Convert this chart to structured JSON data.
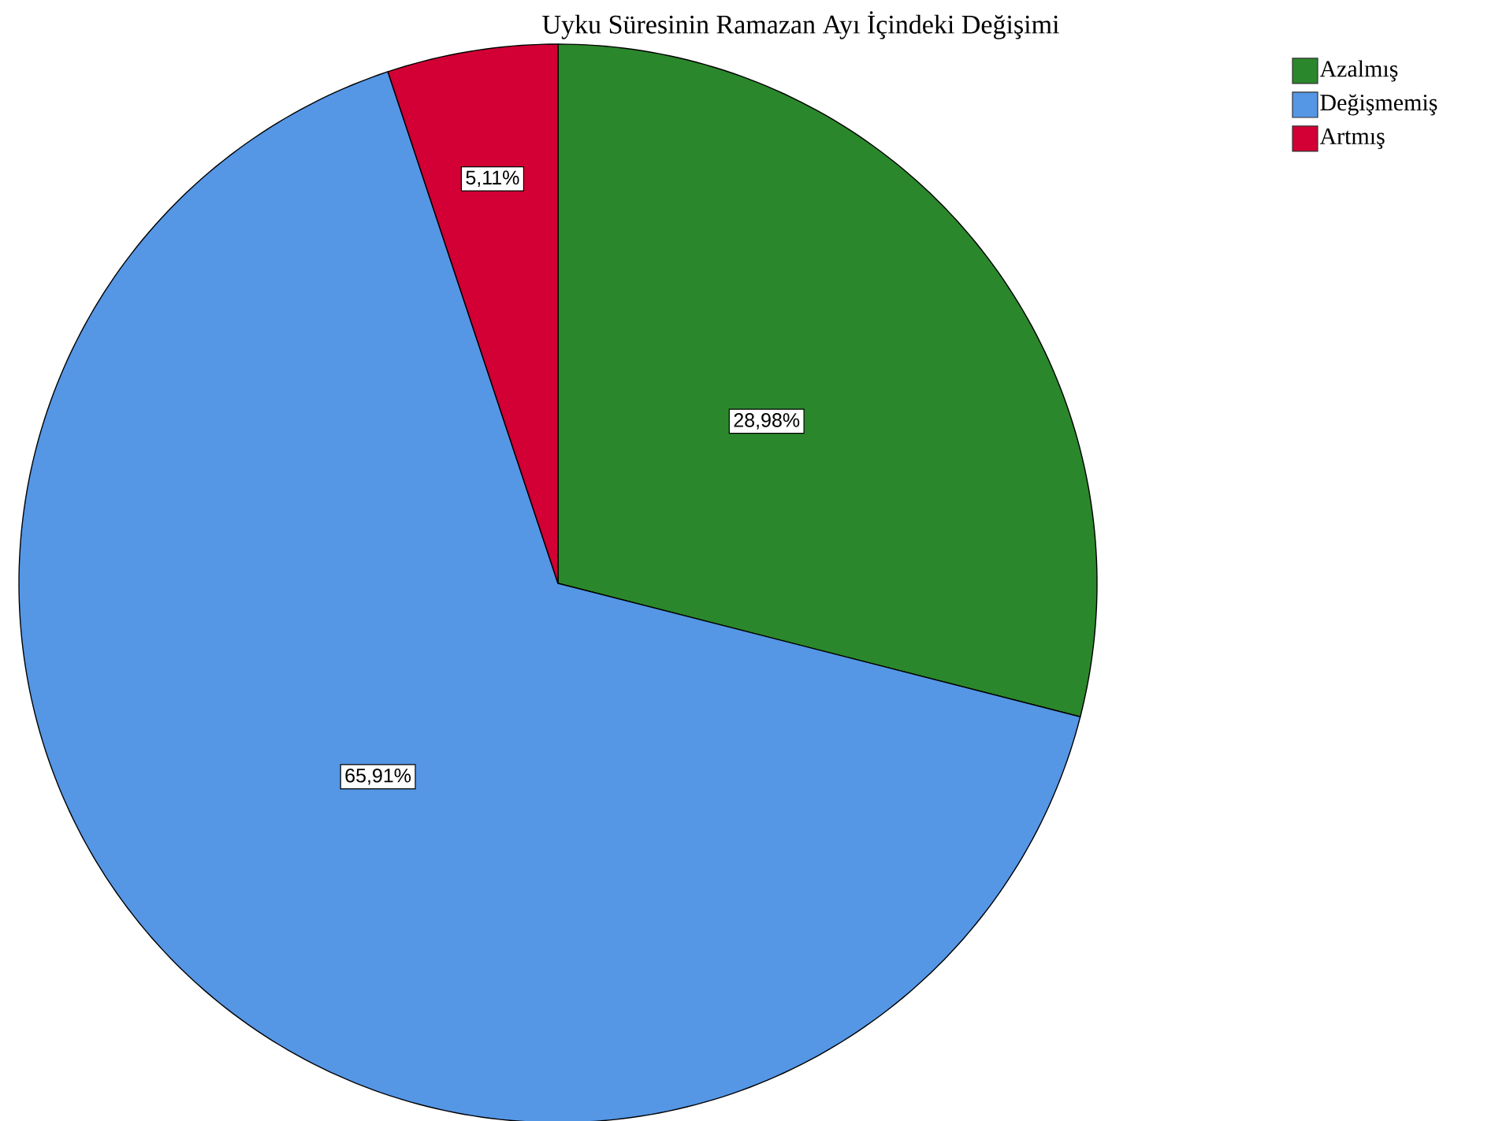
{
  "chart_data": {
    "type": "pie",
    "title": "Uyku Süresinin Ramazan Ayı İçindeki Değişimi",
    "categories": [
      "Azalmış",
      "Değişmemiş",
      "Artmış"
    ],
    "values": [
      28.98,
      65.91,
      5.11
    ],
    "colors": [
      "#2b872b",
      "#5596e5",
      "#d20034"
    ],
    "value_labels": [
      "28,98%",
      "65,91%",
      "5,11%"
    ],
    "legend": "top right"
  }
}
